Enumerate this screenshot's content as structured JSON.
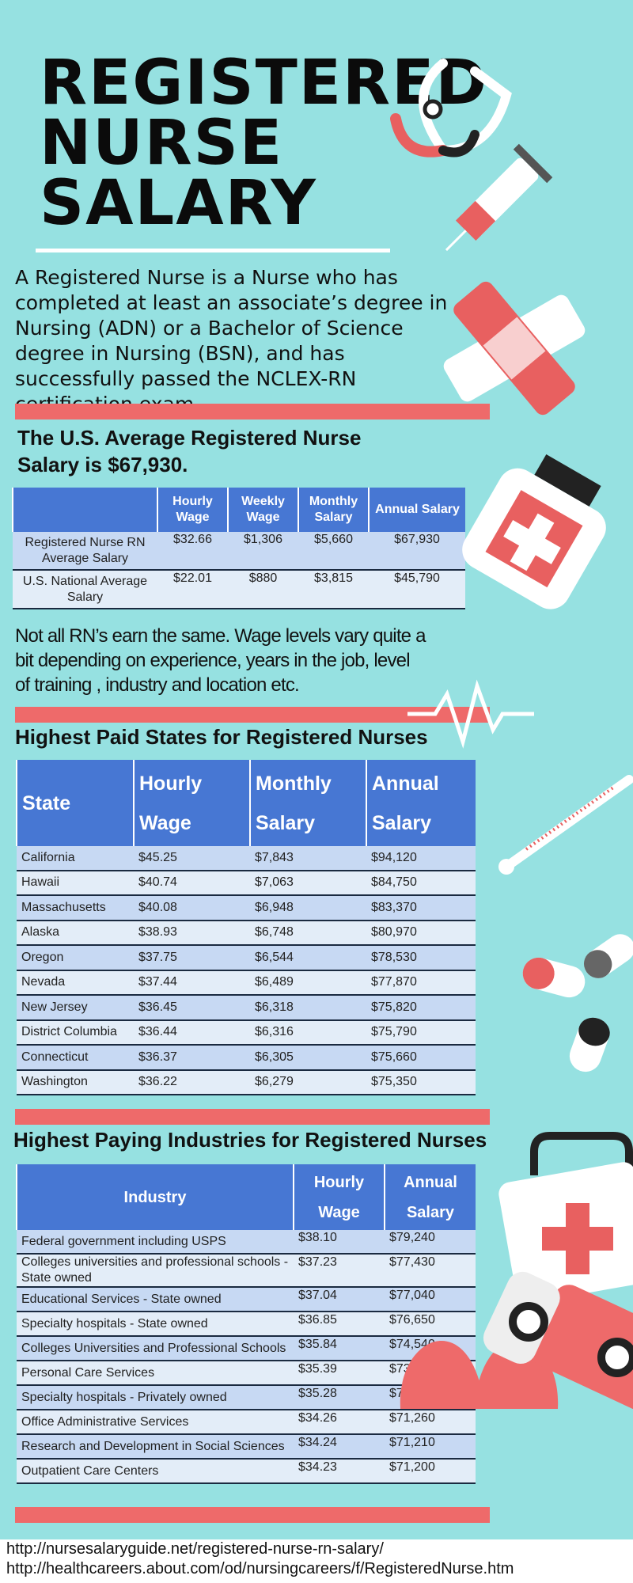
{
  "header": {
    "title": [
      "REGISTERED",
      "NURSE",
      "SALARY"
    ],
    "intro": "A Registered Nurse is a Nurse who has completed at least an associate’s degree in Nursing (ADN) or a Bachelor of Science degree in Nursing (BSN), and has successfully passed the NCLEX-RN certification exam."
  },
  "average": {
    "title": "The U.S. Average Registered Nurse Salary is $67,930.",
    "table": {
      "header": [
        "",
        "Hourly Wage",
        "Weekly Wage",
        "Monthly Salary",
        "Annual Salary"
      ],
      "rows": [
        [
          "Registered Nurse RN Average Salary",
          "$32.66",
          "$1,306",
          "$5,660",
          "$67,930"
        ],
        [
          "U.S. National Average Salary",
          "$22.01",
          "$880",
          "$3,815",
          "$45,790"
        ]
      ]
    }
  },
  "note": "Not all RN’s earn the same. Wage levels vary quite a bit depending on experience, years in the job, level of training , industry and location etc.",
  "states": {
    "title": "Highest Paid States for Registered Nurses",
    "table": {
      "header": [
        "State",
        "Hourly Wage",
        "Monthly Salary",
        "Annual Salary"
      ],
      "rows": [
        [
          "California",
          "$45.25",
          "$7,843",
          "$94,120"
        ],
        [
          "Hawaii",
          "$40.74",
          "$7,063",
          "$84,750"
        ],
        [
          "Massachusetts",
          "$40.08",
          "$6,948",
          "$83,370"
        ],
        [
          "Alaska",
          "$38.93",
          "$6,748",
          "$80,970"
        ],
        [
          "Oregon",
          "$37.75",
          "$6,544",
          "$78,530"
        ],
        [
          "Nevada",
          "$37.44",
          "$6,489",
          "$77,870"
        ],
        [
          "New Jersey",
          "$36.45",
          "$6,318",
          "$75,820"
        ],
        [
          "District Columbia",
          "$36.44",
          "$6,316",
          "$75,790"
        ],
        [
          "Connecticut",
          "$36.37",
          "$6,305",
          "$75,660"
        ],
        [
          "Washington",
          "$36.22",
          "$6,279",
          "$75,350"
        ]
      ]
    }
  },
  "industries": {
    "title": "Highest Paying Industries for Registered Nurses",
    "table": {
      "header": [
        "Industry",
        "Hourly Wage",
        "Annual Salary"
      ],
      "rows": [
        [
          "Federal government including USPS",
          "$38.10",
          "$79,240"
        ],
        [
          "Colleges universities and professional schools - State owned",
          "$37.23",
          "$77,430"
        ],
        [
          "Educational Services - State owned",
          "$37.04",
          "$77,040"
        ],
        [
          "Specialty hospitals - State owned",
          "$36.85",
          "$76,650"
        ],
        [
          "Colleges Universities and Professional Schools",
          "$35.84",
          "$74,540"
        ],
        [
          "Personal Care Services",
          "$35.39",
          "$73,620"
        ],
        [
          "Specialty hospitals - Privately owned",
          "$35.28",
          "$73,380"
        ],
        [
          "Office Administrative Services",
          "$34.26",
          "$71,260"
        ],
        [
          "Research and Development in Social Sciences",
          "$34.24",
          "$71,210"
        ],
        [
          "Outpatient Care Centers",
          "$34.23",
          "$71,200"
        ]
      ]
    }
  },
  "sources": [
    "http://nursesalaryguide.net/registered-nurse-rn-salary/",
    "http://healthcareers.about.com/od/nursingcareers/f/RegisteredNurse.htm"
  ]
}
